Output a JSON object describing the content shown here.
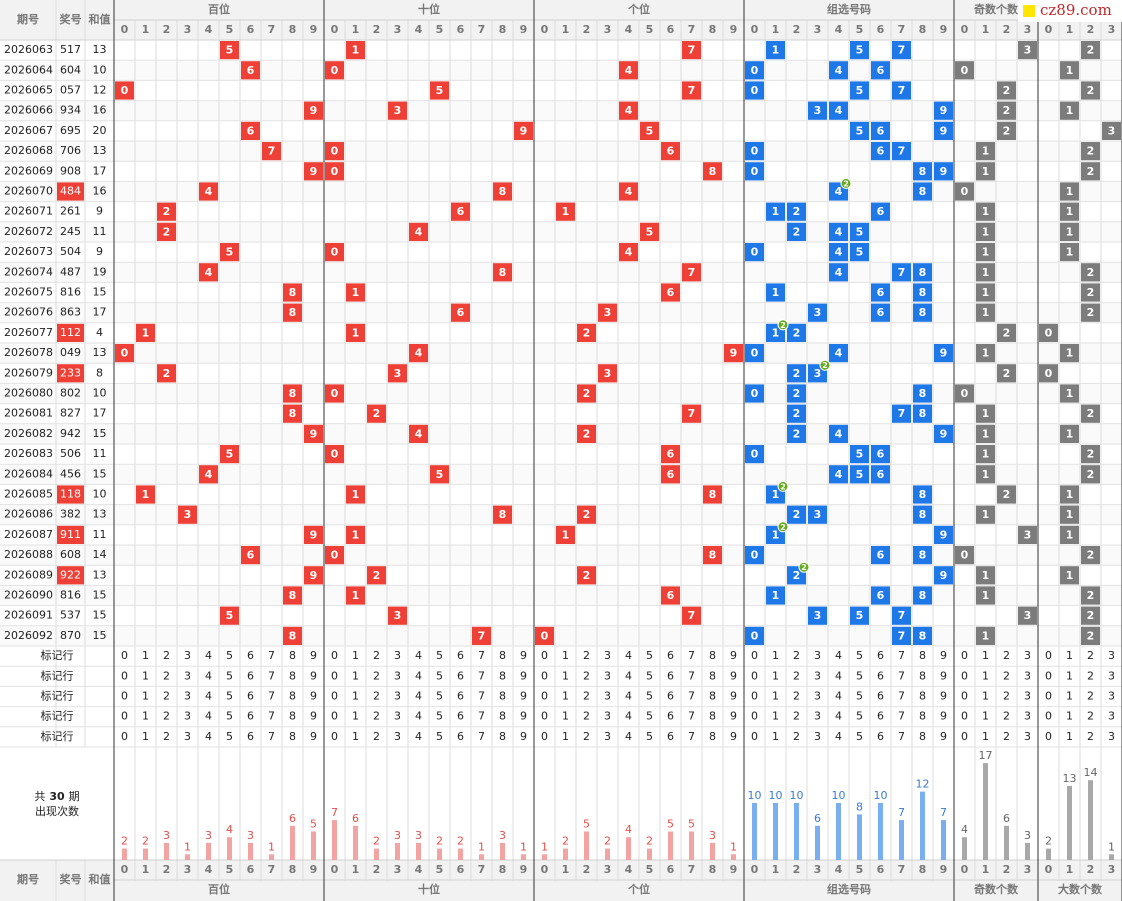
{
  "logo": "cz89.com",
  "headers": [
    "期号",
    "奖号",
    "和值"
  ],
  "groups": [
    "百位",
    "十位",
    "个位",
    "组选号码",
    "奇数个数",
    "大数个数"
  ],
  "columns": {
    "digits": [
      0,
      1,
      2,
      3,
      4,
      5,
      6,
      7,
      8,
      9
    ],
    "counts": [
      0,
      1,
      2,
      3
    ]
  },
  "colors": {
    "position": "#ee4036",
    "combo": "#1f78e8",
    "count": "#7c7c7c",
    "badge": "#66aa1e",
    "bar_position": "#f4a3a3",
    "bar_combo": "#79aef0",
    "bar_count": "#a8a8a8",
    "label_position": "#e0504a",
    "label_combo": "#3a7bd5",
    "label_count": "#666666"
  },
  "rows": [
    {
      "issue": "2026063",
      "number": "517",
      "sum": 13,
      "hundreds": 5,
      "tens": 1,
      "units": 7,
      "combo": [
        1,
        5,
        7
      ],
      "odd": 3,
      "big": 2
    },
    {
      "issue": "2026064",
      "number": "604",
      "sum": 10,
      "hundreds": 6,
      "tens": 0,
      "units": 4,
      "combo": [
        0,
        4,
        6
      ],
      "odd": 0,
      "big": 1
    },
    {
      "issue": "2026065",
      "number": "057",
      "sum": 12,
      "hundreds": 0,
      "tens": 5,
      "units": 7,
      "combo": [
        0,
        5,
        7
      ],
      "odd": 2,
      "big": 2
    },
    {
      "issue": "2026066",
      "number": "934",
      "sum": 16,
      "hundreds": 9,
      "tens": 3,
      "units": 4,
      "combo": [
        3,
        4,
        9
      ],
      "odd": 2,
      "big": 1
    },
    {
      "issue": "2026067",
      "number": "695",
      "sum": 20,
      "hundreds": 6,
      "tens": 9,
      "units": 5,
      "combo": [
        5,
        6,
        9
      ],
      "odd": 2,
      "big": 3
    },
    {
      "issue": "2026068",
      "number": "706",
      "sum": 13,
      "hundreds": 7,
      "tens": 0,
      "units": 6,
      "combo": [
        0,
        6,
        7
      ],
      "odd": 1,
      "big": 2
    },
    {
      "issue": "2026069",
      "number": "908",
      "sum": 17,
      "hundreds": 9,
      "tens": 0,
      "units": 8,
      "combo": [
        0,
        8,
        9
      ],
      "odd": 1,
      "big": 2
    },
    {
      "issue": "2026070",
      "number": "484",
      "sum": 16,
      "hundreds": 4,
      "tens": 8,
      "units": 4,
      "combo": [
        4,
        8
      ],
      "pair_digit": 4,
      "pair_count": 2,
      "odd": 0,
      "big": 1
    },
    {
      "issue": "2026071",
      "number": "261",
      "sum": 9,
      "hundreds": 2,
      "tens": 6,
      "units": 1,
      "combo": [
        1,
        2,
        6
      ],
      "odd": 1,
      "big": 1
    },
    {
      "issue": "2026072",
      "number": "245",
      "sum": 11,
      "hundreds": 2,
      "tens": 4,
      "units": 5,
      "combo": [
        2,
        4,
        5
      ],
      "odd": 1,
      "big": 1
    },
    {
      "issue": "2026073",
      "number": "504",
      "sum": 9,
      "hundreds": 5,
      "tens": 0,
      "units": 4,
      "combo": [
        0,
        4,
        5
      ],
      "odd": 1,
      "big": 1
    },
    {
      "issue": "2026074",
      "number": "487",
      "sum": 19,
      "hundreds": 4,
      "tens": 8,
      "units": 7,
      "combo": [
        4,
        7,
        8
      ],
      "odd": 1,
      "big": 2
    },
    {
      "issue": "2026075",
      "number": "816",
      "sum": 15,
      "hundreds": 8,
      "tens": 1,
      "units": 6,
      "combo": [
        1,
        6,
        8
      ],
      "odd": 1,
      "big": 2
    },
    {
      "issue": "2026076",
      "number": "863",
      "sum": 17,
      "hundreds": 8,
      "tens": 6,
      "units": 3,
      "combo": [
        3,
        6,
        8
      ],
      "odd": 1,
      "big": 2
    },
    {
      "issue": "2026077",
      "number": "112",
      "sum": 4,
      "hundreds": 1,
      "tens": 1,
      "units": 2,
      "combo": [
        1,
        2
      ],
      "pair_digit": 1,
      "pair_count": 2,
      "odd": 2,
      "big": 0
    },
    {
      "issue": "2026078",
      "number": "049",
      "sum": 13,
      "hundreds": 0,
      "tens": 4,
      "units": 9,
      "combo": [
        0,
        4,
        9
      ],
      "odd": 1,
      "big": 1
    },
    {
      "issue": "2026079",
      "number": "233",
      "sum": 8,
      "hundreds": 2,
      "tens": 3,
      "units": 3,
      "combo": [
        2,
        3
      ],
      "pair_digit": 3,
      "pair_count": 2,
      "odd": 2,
      "big": 0
    },
    {
      "issue": "2026080",
      "number": "802",
      "sum": 10,
      "hundreds": 8,
      "tens": 0,
      "units": 2,
      "combo": [
        0,
        2,
        8
      ],
      "odd": 0,
      "big": 1
    },
    {
      "issue": "2026081",
      "number": "827",
      "sum": 17,
      "hundreds": 8,
      "tens": 2,
      "units": 7,
      "combo": [
        2,
        7,
        8
      ],
      "odd": 1,
      "big": 2
    },
    {
      "issue": "2026082",
      "number": "942",
      "sum": 15,
      "hundreds": 9,
      "tens": 4,
      "units": 2,
      "combo": [
        2,
        4,
        9
      ],
      "odd": 1,
      "big": 1
    },
    {
      "issue": "2026083",
      "number": "506",
      "sum": 11,
      "hundreds": 5,
      "tens": 0,
      "units": 6,
      "combo": [
        0,
        5,
        6
      ],
      "odd": 1,
      "big": 2
    },
    {
      "issue": "2026084",
      "number": "456",
      "sum": 15,
      "hundreds": 4,
      "tens": 5,
      "units": 6,
      "combo": [
        4,
        5,
        6
      ],
      "odd": 1,
      "big": 2
    },
    {
      "issue": "2026085",
      "number": "118",
      "sum": 10,
      "hundreds": 1,
      "tens": 1,
      "units": 8,
      "combo": [
        1,
        8
      ],
      "pair_digit": 1,
      "pair_count": 2,
      "odd": 2,
      "big": 1
    },
    {
      "issue": "2026086",
      "number": "382",
      "sum": 13,
      "hundreds": 3,
      "tens": 8,
      "units": 2,
      "combo": [
        2,
        3,
        8
      ],
      "odd": 1,
      "big": 1
    },
    {
      "issue": "2026087",
      "number": "911",
      "sum": 11,
      "hundreds": 9,
      "tens": 1,
      "units": 1,
      "combo": [
        1,
        9
      ],
      "pair_digit": 1,
      "pair_count": 2,
      "odd": 3,
      "big": 1
    },
    {
      "issue": "2026088",
      "number": "608",
      "sum": 14,
      "hundreds": 6,
      "tens": 0,
      "units": 8,
      "combo": [
        0,
        6,
        8
      ],
      "odd": 0,
      "big": 2
    },
    {
      "issue": "2026089",
      "number": "922",
      "sum": 13,
      "hundreds": 9,
      "tens": 2,
      "units": 2,
      "combo": [
        2,
        9
      ],
      "pair_digit": 2,
      "pair_count": 2,
      "odd": 1,
      "big": 1
    },
    {
      "issue": "2026090",
      "number": "816",
      "sum": 15,
      "hundreds": 8,
      "tens": 1,
      "units": 6,
      "combo": [
        1,
        6,
        8
      ],
      "odd": 1,
      "big": 2
    },
    {
      "issue": "2026091",
      "number": "537",
      "sum": 15,
      "hundreds": 5,
      "tens": 3,
      "units": 7,
      "combo": [
        3,
        5,
        7
      ],
      "odd": 3,
      "big": 2
    },
    {
      "issue": "2026092",
      "number": "870",
      "sum": 15,
      "hundreds": 8,
      "tens": 7,
      "units": 0,
      "combo": [
        0,
        7,
        8
      ],
      "odd": 1,
      "big": 2
    }
  ],
  "marker_label": "标记行",
  "marker_rows": 5,
  "stats_title": {
    "prefix": "共",
    "count": 30,
    "suffix": "期",
    "label": "出现次数"
  },
  "stats": [
    [
      2,
      2,
      3,
      1,
      3,
      4,
      3,
      1,
      6,
      5
    ],
    [
      7,
      6,
      2,
      3,
      3,
      2,
      2,
      1,
      3,
      1
    ],
    [
      1,
      2,
      5,
      2,
      4,
      2,
      5,
      5,
      3,
      1
    ],
    [
      10,
      10,
      10,
      6,
      10,
      8,
      10,
      7,
      12,
      7
    ],
    [
      4,
      17,
      6,
      3
    ],
    [
      2,
      13,
      14,
      1
    ]
  ]
}
